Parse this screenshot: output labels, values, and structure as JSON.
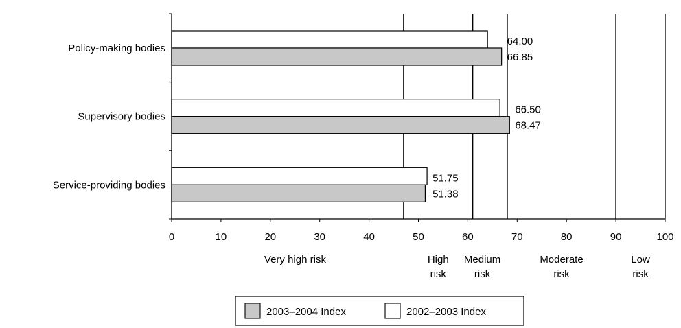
{
  "chart_data": {
    "type": "bar",
    "orientation": "horizontal",
    "categories": [
      "Policy-making bodies",
      "Supervisory bodies",
      "Service-providing bodies"
    ],
    "series": [
      {
        "name": "2002–2003 Index",
        "values": [
          64.0,
          66.5,
          51.75
        ],
        "labels": [
          "64.00",
          "66.50",
          "51.75"
        ],
        "color": "#ffffff"
      },
      {
        "name": "2003–2004 Index",
        "values": [
          66.85,
          68.47,
          51.38
        ],
        "labels": [
          "66.85",
          "68.47",
          "51.38"
        ],
        "color": "#c8c8c8"
      }
    ],
    "xlim": [
      0,
      100
    ],
    "xticks": [
      0,
      10,
      20,
      30,
      40,
      50,
      60,
      70,
      80,
      90,
      100
    ],
    "risk_bands": [
      {
        "label_lines": [
          "Very high risk"
        ],
        "from": 0,
        "to": 47
      },
      {
        "label_lines": [
          "High",
          "risk"
        ],
        "from": 47,
        "to": 61
      },
      {
        "label_lines": [
          "Medium",
          "risk"
        ],
        "from": 61,
        "to": 68
      },
      {
        "label_lines": [
          "Moderate",
          "risk"
        ],
        "from": 68,
        "to": 90
      },
      {
        "label_lines": [
          "Low",
          "risk"
        ],
        "from": 90,
        "to": 100
      }
    ],
    "band_boundaries": [
      47,
      61,
      68,
      90
    ],
    "legend": {
      "placement": "bottom",
      "order": [
        "2003–2004 Index",
        "2002–2003 Index"
      ]
    },
    "grid": false
  }
}
